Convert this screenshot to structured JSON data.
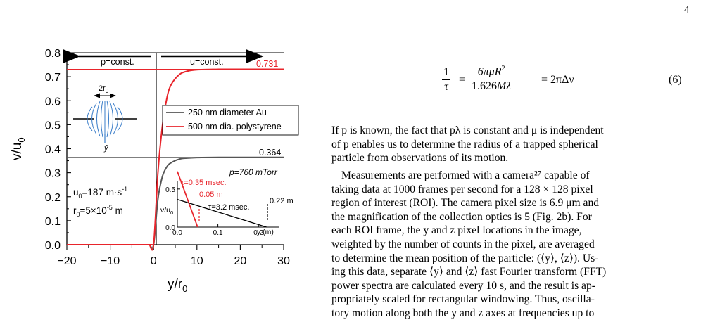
{
  "page": {
    "number": "4"
  },
  "figure": {
    "top_labels": {
      "left": "ρ=const.",
      "right": "u=const."
    },
    "level_labels": {
      "upper": "0.731",
      "lower": "0.364"
    },
    "pressure_label": "p=760 mTorr",
    "diagram": {
      "width_label": "2r",
      "width_sub": "0",
      "axis_symbol": "ŷ"
    },
    "params": {
      "u0_text": "u",
      "u0_sub": "0",
      "u0_value": "=187 m·s",
      "u0_sup": "-1",
      "r0_text": "r",
      "r0_sub": "0",
      "r0_value": "=5×10",
      "r0_sup": "-5",
      "r0_unit": " m"
    },
    "inset": {
      "red_tau": "τ=0.35 msec.",
      "red_dist": "0.05 m",
      "black_tau": "τ=3.2 msec.",
      "black_dist": "0.22 m",
      "ylabel": "v/u",
      "ylabel_sub": "0",
      "xlabel": "y (m)"
    }
  },
  "chart_data": {
    "type": "line",
    "xlabel": "y/r0",
    "ylabel": "v/u0",
    "xlim": [
      -20,
      30
    ],
    "ylim": [
      0.0,
      0.8
    ],
    "x_ticks": [
      "−20",
      "−10",
      "0",
      "10",
      "20",
      "30"
    ],
    "y_ticks": [
      "0.0",
      "0.1",
      "0.2",
      "0.3",
      "0.4",
      "0.5",
      "0.6",
      "0.7",
      "0.8"
    ],
    "series": [
      {
        "name": "250 nm diameter Au",
        "color": "#555555",
        "plateau": 0.364,
        "x": [
          -20,
          -2,
          -1,
          0,
          1,
          2,
          3,
          4,
          6,
          8,
          10,
          15,
          20,
          30
        ],
        "y": [
          0.0,
          0.0,
          0.0,
          0.0,
          0.19,
          0.282,
          0.323,
          0.341,
          0.357,
          0.361,
          0.363,
          0.364,
          0.364,
          0.364
        ]
      },
      {
        "name": "500 nm dia. polystyrene",
        "color": "#e8242b",
        "plateau": 0.731,
        "x": [
          -20,
          -2,
          -1,
          0,
          1,
          2,
          3,
          4,
          6,
          8,
          10,
          15,
          20,
          30
        ],
        "y": [
          0.0,
          0.0,
          0.0,
          0.0,
          0.3,
          0.49,
          0.605,
          0.665,
          0.71,
          0.724,
          0.729,
          0.731,
          0.731,
          0.731
        ]
      }
    ],
    "inset": {
      "type": "line",
      "xlabel": "y (m)",
      "ylabel": "v/u0",
      "xlim": [
        0.0,
        0.25
      ],
      "ylim": [
        0.0,
        0.6
      ],
      "x_ticks": [
        "0.0",
        "0.1",
        "0.2"
      ],
      "y_ticks": [
        "0.0",
        "0.5"
      ],
      "series": [
        {
          "name": "τ=0.35 msec.",
          "color": "#e8242b",
          "x": [
            0.0,
            0.05
          ],
          "y": [
            0.731,
            0.0
          ]
        },
        {
          "name": "τ=3.2 msec.",
          "color": "#000000",
          "x": [
            0.0,
            0.22
          ],
          "y": [
            0.364,
            0.0
          ]
        }
      ]
    }
  },
  "equation": {
    "lhs_num": "1",
    "lhs_den": "τ",
    "rhs_num_a": "6πμR",
    "rhs_num_sup": "2",
    "rhs_den_a": "1.626",
    "rhs_den_b": "Mλ",
    "rhs_tail": "= 2πΔν",
    "eq_eq": "=",
    "number": "(6)"
  },
  "text": {
    "para1": [
      "If p is known, the fact that pλ is constant and μ is independent",
      "of p enables us to determine the radius of a trapped spherical",
      "particle from observations of its motion."
    ],
    "para2": [
      "Measurements are performed with a camera²⁷ capable of",
      "taking data at 1000 frames per second for a 128 × 128 pixel",
      "region of interest (ROI). The camera pixel size is 6.9 μm and",
      "the magnification of the collection optics is 5 (Fig. 2b). For",
      "each ROI frame, the y and z pixel locations in the image,",
      "weighted by the number of counts in the pixel, are averaged",
      "to determine the mean position of the particle: (⟨y⟩, ⟨z⟩). Us-",
      "ing this data, separate ⟨y⟩ and ⟨z⟩ fast Fourier transform (FFT)",
      "power spectra are calculated every 10 s, and the result is ap-",
      "propriately scaled for rectangular windowing. Thus, oscilla-",
      "tory motion along both the y and z axes at frequencies up to"
    ]
  }
}
